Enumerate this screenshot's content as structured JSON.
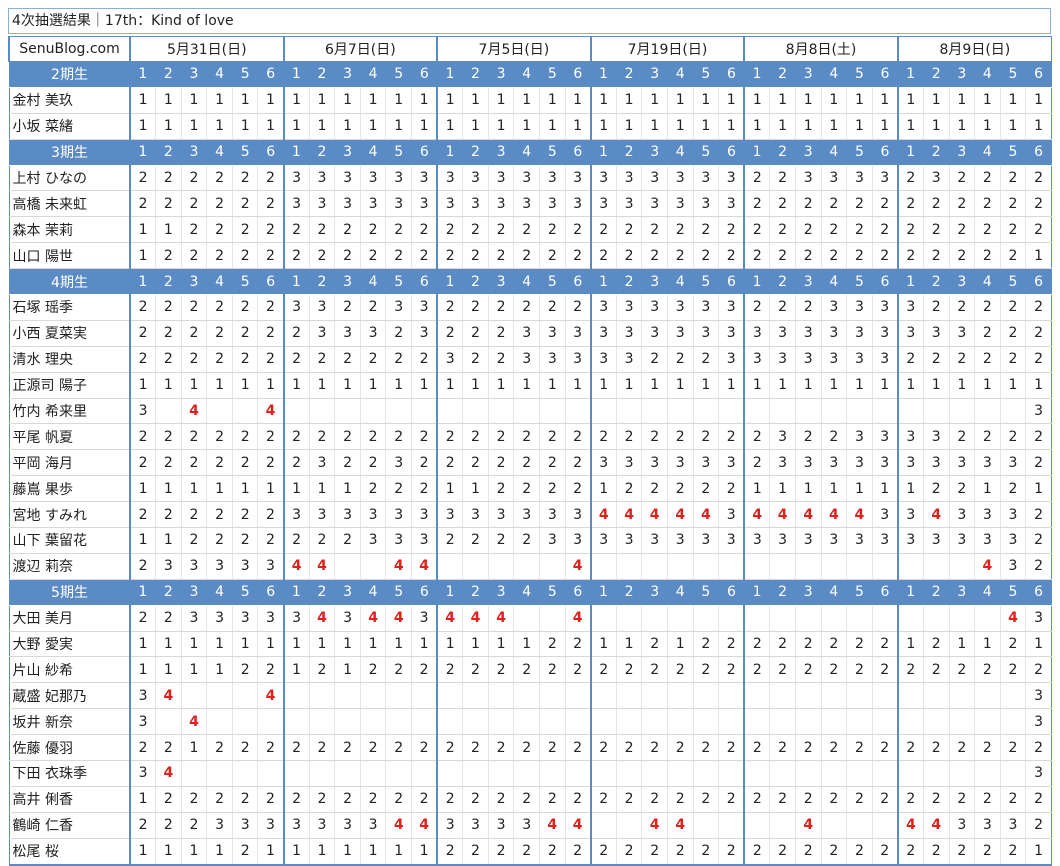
{
  "title": "4次抽選結果｜17th：Kind of love",
  "site": "SenuBlog.com",
  "dates": [
    "5月31日(日)",
    "6月7日(日)",
    "7月5日(日)",
    "7月19日(日)",
    "8月8日(土)",
    "8月9日(日)"
  ],
  "slots": [
    "1",
    "2",
    "3",
    "4",
    "5",
    "6"
  ],
  "groups": [
    {
      "label": "2期生",
      "members": [
        {
          "name": "金村 美玖",
          "values": [
            "1",
            "1",
            "1",
            "1",
            "1",
            "1",
            "1",
            "1",
            "1",
            "1",
            "1",
            "1",
            "1",
            "1",
            "1",
            "1",
            "1",
            "1",
            "1",
            "1",
            "1",
            "1",
            "1",
            "1",
            "1",
            "1",
            "1",
            "1",
            "1",
            "1",
            "1",
            "1",
            "1",
            "1",
            "1",
            "1"
          ]
        },
        {
          "name": "小坂 菜緒",
          "values": [
            "1",
            "1",
            "1",
            "1",
            "1",
            "1",
            "1",
            "1",
            "1",
            "1",
            "1",
            "1",
            "1",
            "1",
            "1",
            "1",
            "1",
            "1",
            "1",
            "1",
            "1",
            "1",
            "1",
            "1",
            "1",
            "1",
            "1",
            "1",
            "1",
            "1",
            "1",
            "1",
            "1",
            "1",
            "1",
            "1"
          ]
        }
      ]
    },
    {
      "label": "3期生",
      "members": [
        {
          "name": "上村 ひなの",
          "values": [
            "2",
            "2",
            "2",
            "2",
            "2",
            "2",
            "3",
            "3",
            "3",
            "3",
            "3",
            "3",
            "3",
            "3",
            "3",
            "3",
            "3",
            "3",
            "3",
            "3",
            "3",
            "3",
            "3",
            "3",
            "2",
            "2",
            "3",
            "3",
            "3",
            "3",
            "2",
            "3",
            "2",
            "2",
            "2",
            "2"
          ]
        },
        {
          "name": "高橋 未来虹",
          "values": [
            "2",
            "2",
            "2",
            "2",
            "2",
            "2",
            "3",
            "3",
            "3",
            "3",
            "3",
            "3",
            "3",
            "3",
            "3",
            "3",
            "3",
            "3",
            "3",
            "3",
            "3",
            "3",
            "3",
            "3",
            "2",
            "2",
            "2",
            "2",
            "2",
            "2",
            "2",
            "2",
            "2",
            "2",
            "2",
            "2"
          ]
        },
        {
          "name": "森本 茉莉",
          "values": [
            "1",
            "1",
            "2",
            "2",
            "2",
            "2",
            "2",
            "2",
            "2",
            "2",
            "2",
            "2",
            "2",
            "2",
            "2",
            "2",
            "2",
            "2",
            "2",
            "2",
            "2",
            "2",
            "2",
            "2",
            "2",
            "2",
            "2",
            "2",
            "2",
            "2",
            "2",
            "2",
            "2",
            "2",
            "2",
            "2"
          ]
        },
        {
          "name": "山口 陽世",
          "values": [
            "1",
            "2",
            "2",
            "2",
            "2",
            "2",
            "2",
            "2",
            "2",
            "2",
            "2",
            "2",
            "2",
            "2",
            "2",
            "2",
            "2",
            "2",
            "2",
            "2",
            "2",
            "2",
            "2",
            "2",
            "2",
            "2",
            "2",
            "2",
            "2",
            "2",
            "2",
            "2",
            "2",
            "2",
            "2",
            "1"
          ]
        }
      ]
    },
    {
      "label": "4期生",
      "members": [
        {
          "name": "石塚 瑶季",
          "values": [
            "2",
            "2",
            "2",
            "2",
            "2",
            "2",
            "3",
            "3",
            "2",
            "2",
            "3",
            "3",
            "2",
            "2",
            "2",
            "2",
            "2",
            "2",
            "3",
            "3",
            "3",
            "3",
            "3",
            "3",
            "2",
            "2",
            "2",
            "3",
            "3",
            "3",
            "3",
            "2",
            "2",
            "2",
            "2",
            "2"
          ]
        },
        {
          "name": "小西 夏菜実",
          "values": [
            "2",
            "2",
            "2",
            "2",
            "2",
            "2",
            "2",
            "3",
            "3",
            "3",
            "2",
            "3",
            "2",
            "2",
            "2",
            "3",
            "3",
            "3",
            "3",
            "3",
            "3",
            "3",
            "3",
            "3",
            "3",
            "3",
            "3",
            "3",
            "3",
            "3",
            "3",
            "3",
            "3",
            "2",
            "2",
            "2"
          ]
        },
        {
          "name": "清水 理央",
          "values": [
            "2",
            "2",
            "2",
            "2",
            "2",
            "2",
            "2",
            "2",
            "2",
            "2",
            "2",
            "2",
            "3",
            "2",
            "2",
            "3",
            "3",
            "3",
            "3",
            "3",
            "2",
            "2",
            "2",
            "3",
            "3",
            "3",
            "3",
            "3",
            "3",
            "3",
            "2",
            "2",
            "2",
            "2",
            "2",
            "2"
          ]
        },
        {
          "name": "正源司 陽子",
          "values": [
            "1",
            "1",
            "1",
            "1",
            "1",
            "1",
            "1",
            "1",
            "1",
            "1",
            "1",
            "1",
            "1",
            "1",
            "1",
            "1",
            "1",
            "1",
            "1",
            "1",
            "1",
            "1",
            "1",
            "1",
            "1",
            "1",
            "1",
            "1",
            "1",
            "1",
            "1",
            "1",
            "1",
            "1",
            "1",
            "1"
          ]
        },
        {
          "name": "竹内 希来里",
          "values": [
            "3",
            "",
            "4",
            "",
            "",
            "4",
            "",
            "",
            "",
            "",
            "",
            "",
            "",
            "",
            "",
            "",
            "",
            "",
            "",
            "",
            "",
            "",
            "",
            "",
            "",
            "",
            "",
            "",
            "",
            "",
            "",
            "",
            "",
            "",
            "",
            "3"
          ]
        },
        {
          "name": "平尾 帆夏",
          "values": [
            "2",
            "2",
            "2",
            "2",
            "2",
            "2",
            "2",
            "2",
            "2",
            "2",
            "2",
            "2",
            "2",
            "2",
            "2",
            "2",
            "2",
            "2",
            "2",
            "2",
            "2",
            "2",
            "2",
            "2",
            "2",
            "3",
            "2",
            "2",
            "3",
            "3",
            "3",
            "3",
            "2",
            "2",
            "2",
            "2"
          ]
        },
        {
          "name": "平岡 海月",
          "values": [
            "2",
            "2",
            "2",
            "2",
            "2",
            "2",
            "2",
            "3",
            "2",
            "2",
            "3",
            "2",
            "2",
            "2",
            "2",
            "2",
            "2",
            "2",
            "3",
            "3",
            "3",
            "3",
            "3",
            "3",
            "2",
            "3",
            "3",
            "3",
            "3",
            "3",
            "3",
            "3",
            "3",
            "3",
            "3",
            "2"
          ]
        },
        {
          "name": "藤嶌 果歩",
          "values": [
            "1",
            "1",
            "1",
            "1",
            "1",
            "1",
            "1",
            "1",
            "1",
            "2",
            "2",
            "2",
            "1",
            "1",
            "2",
            "2",
            "2",
            "2",
            "1",
            "2",
            "2",
            "2",
            "2",
            "2",
            "1",
            "1",
            "1",
            "1",
            "1",
            "1",
            "1",
            "2",
            "2",
            "1",
            "2",
            "1"
          ]
        },
        {
          "name": "宮地 すみれ",
          "values": [
            "2",
            "2",
            "2",
            "2",
            "2",
            "2",
            "3",
            "3",
            "3",
            "3",
            "3",
            "3",
            "3",
            "3",
            "3",
            "3",
            "3",
            "3",
            "4",
            "4",
            "4",
            "4",
            "4",
            "3",
            "4",
            "4",
            "4",
            "4",
            "4",
            "3",
            "3",
            "4",
            "3",
            "3",
            "3",
            "2"
          ]
        },
        {
          "name": "山下 葉留花",
          "values": [
            "1",
            "1",
            "2",
            "2",
            "2",
            "2",
            "2",
            "2",
            "2",
            "3",
            "3",
            "3",
            "2",
            "2",
            "2",
            "2",
            "3",
            "3",
            "3",
            "3",
            "3",
            "3",
            "3",
            "3",
            "3",
            "3",
            "3",
            "3",
            "3",
            "3",
            "3",
            "3",
            "3",
            "3",
            "3",
            "2"
          ]
        },
        {
          "name": "渡辺 莉奈",
          "values": [
            "2",
            "3",
            "3",
            "3",
            "3",
            "3",
            "4",
            "4",
            "",
            "",
            "4",
            "4",
            "",
            "",
            "",
            "",
            "",
            "4",
            "",
            "",
            "",
            "",
            "",
            "",
            "",
            "",
            "",
            "",
            "",
            "",
            "",
            "",
            "",
            "4",
            "3",
            "2"
          ]
        }
      ]
    },
    {
      "label": "5期生",
      "members": [
        {
          "name": "大田 美月",
          "values": [
            "2",
            "2",
            "3",
            "3",
            "3",
            "3",
            "3",
            "4",
            "3",
            "4",
            "4",
            "3",
            "4",
            "4",
            "4",
            "",
            "",
            "4",
            "",
            "",
            "",
            "",
            "",
            "",
            "",
            "",
            "",
            "",
            "",
            "",
            "",
            "",
            "",
            "",
            "4",
            "3"
          ]
        },
        {
          "name": "大野 愛実",
          "values": [
            "1",
            "1",
            "1",
            "1",
            "1",
            "1",
            "1",
            "1",
            "1",
            "1",
            "1",
            "1",
            "1",
            "1",
            "1",
            "1",
            "2",
            "2",
            "1",
            "1",
            "2",
            "1",
            "2",
            "2",
            "2",
            "2",
            "2",
            "2",
            "2",
            "2",
            "1",
            "2",
            "1",
            "1",
            "2",
            "1"
          ]
        },
        {
          "name": "片山 紗希",
          "values": [
            "1",
            "1",
            "1",
            "1",
            "2",
            "2",
            "1",
            "2",
            "1",
            "2",
            "2",
            "2",
            "2",
            "2",
            "2",
            "2",
            "2",
            "2",
            "2",
            "2",
            "2",
            "2",
            "2",
            "2",
            "2",
            "2",
            "2",
            "2",
            "2",
            "2",
            "2",
            "2",
            "2",
            "2",
            "2",
            "2"
          ]
        },
        {
          "name": "蔵盛 妃那乃",
          "values": [
            "3",
            "4",
            "",
            "",
            "",
            "4",
            "",
            "",
            "",
            "",
            "",
            "",
            "",
            "",
            "",
            "",
            "",
            "",
            "",
            "",
            "",
            "",
            "",
            "",
            "",
            "",
            "",
            "",
            "",
            "",
            "",
            "",
            "",
            "",
            "",
            "3"
          ]
        },
        {
          "name": "坂井 新奈",
          "values": [
            "3",
            "",
            "4",
            "",
            "",
            "",
            "",
            "",
            "",
            "",
            "",
            "",
            "",
            "",
            "",
            "",
            "",
            "",
            "",
            "",
            "",
            "",
            "",
            "",
            "",
            "",
            "",
            "",
            "",
            "",
            "",
            "",
            "",
            "",
            "",
            "3"
          ]
        },
        {
          "name": "佐藤 優羽",
          "values": [
            "2",
            "2",
            "1",
            "2",
            "2",
            "2",
            "2",
            "2",
            "2",
            "2",
            "2",
            "2",
            "2",
            "2",
            "2",
            "2",
            "2",
            "2",
            "2",
            "2",
            "2",
            "2",
            "2",
            "2",
            "2",
            "2",
            "2",
            "2",
            "2",
            "2",
            "2",
            "2",
            "2",
            "2",
            "2",
            "2"
          ]
        },
        {
          "name": "下田 衣珠季",
          "values": [
            "3",
            "4",
            "",
            "",
            "",
            "",
            "",
            "",
            "",
            "",
            "",
            "",
            "",
            "",
            "",
            "",
            "",
            "",
            "",
            "",
            "",
            "",
            "",
            "",
            "",
            "",
            "",
            "",
            "",
            "",
            "",
            "",
            "",
            "",
            "",
            "3"
          ]
        },
        {
          "name": "高井 俐香",
          "values": [
            "1",
            "2",
            "2",
            "2",
            "2",
            "2",
            "2",
            "2",
            "2",
            "2",
            "2",
            "2",
            "2",
            "2",
            "2",
            "2",
            "2",
            "2",
            "2",
            "2",
            "2",
            "2",
            "2",
            "2",
            "2",
            "2",
            "2",
            "2",
            "2",
            "2",
            "2",
            "2",
            "2",
            "2",
            "2",
            "2"
          ]
        },
        {
          "name": "鶴崎 仁香",
          "values": [
            "2",
            "2",
            "2",
            "3",
            "3",
            "3",
            "3",
            "3",
            "3",
            "3",
            "4",
            "4",
            "3",
            "3",
            "3",
            "3",
            "4",
            "4",
            "",
            "",
            "4",
            "4",
            "",
            "",
            "",
            "",
            "4",
            "",
            "",
            "",
            "4",
            "4",
            "3",
            "3",
            "3",
            "2"
          ]
        },
        {
          "name": "松尾 桜",
          "values": [
            "1",
            "1",
            "1",
            "1",
            "2",
            "1",
            "1",
            "1",
            "1",
            "1",
            "1",
            "1",
            "2",
            "2",
            "2",
            "2",
            "2",
            "2",
            "2",
            "2",
            "2",
            "2",
            "2",
            "2",
            "2",
            "2",
            "2",
            "2",
            "2",
            "2",
            "2",
            "2",
            "2",
            "2",
            "2",
            "1"
          ]
        }
      ]
    }
  ],
  "colors": {
    "header_bg": "#5b8bc5",
    "highlight": "#e0201a",
    "border": "#5b8bc5"
  }
}
